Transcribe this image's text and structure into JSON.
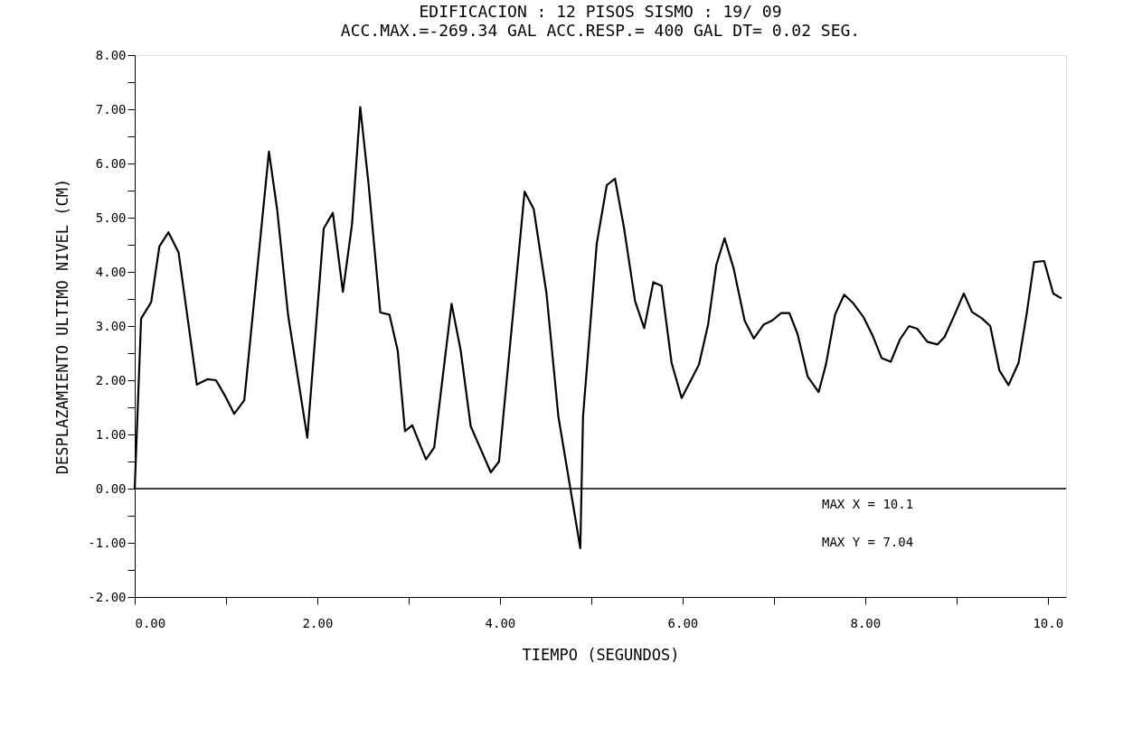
{
  "chart_data": {
    "type": "line",
    "title": "EDIFICACION : 12 PISOS    SISMO : 19/ 09",
    "subtitle": "ACC.MAX.=-269.34 GAL  ACC.RESP.= 400 GAL  DT= 0.02 SEG.",
    "xlabel": "TIEMPO    (SEGUNDOS)",
    "ylabel": "DESPLAZAMIENTO ULTIMO NIVEL    (CM)",
    "annotations": [
      "MAX X =  10.1",
      "MAX Y =  7.04"
    ],
    "x": [
      0,
      0.07,
      0.18,
      0.27,
      0.37,
      0.48,
      0.68,
      0.8,
      0.89,
      0.99,
      1.09,
      1.2,
      1.47,
      1.56,
      1.68,
      1.89,
      2.07,
      2.17,
      2.28,
      2.38,
      2.47,
      2.56,
      2.69,
      2.79,
      2.88,
      2.96,
      3.04,
      3.19,
      3.28,
      3.47,
      3.57,
      3.68,
      3.9,
      3.99,
      4.27,
      4.37,
      4.51,
      4.64,
      4.88,
      4.91,
      5.06,
      5.17,
      5.26,
      5.36,
      5.48,
      5.58,
      5.68,
      5.77,
      5.88,
      5.99,
      6.18,
      6.28,
      6.37,
      6.46,
      6.56,
      6.68,
      6.78,
      6.89,
      6.98,
      7.08,
      7.17,
      7.26,
      7.37,
      7.49,
      7.57,
      7.67,
      7.77,
      7.87,
      7.98,
      8.08,
      8.18,
      8.28,
      8.38,
      8.48,
      8.57,
      8.68,
      8.79,
      8.87,
      8.98,
      9.08,
      9.17,
      9.28,
      9.37,
      9.47,
      9.57,
      9.68,
      9.77,
      9.85,
      9.96,
      10.06,
      10.15
    ],
    "series": [
      {
        "color": "#000000",
        "values": [
          0,
          3.14,
          3.44,
          4.47,
          4.73,
          4.36,
          1.92,
          2.02,
          2.0,
          1.71,
          1.38,
          1.63,
          6.22,
          5.15,
          3.2,
          0.94,
          4.8,
          5.09,
          3.63,
          4.88,
          7.04,
          5.64,
          3.25,
          3.21,
          2.55,
          1.06,
          1.17,
          0.54,
          0.76,
          3.41,
          2.55,
          1.15,
          0.3,
          0.5,
          5.48,
          5.16,
          3.6,
          1.33,
          -1.1,
          1.33,
          4.52,
          5.6,
          5.72,
          4.8,
          3.46,
          2.96,
          3.81,
          3.74,
          2.32,
          1.67,
          2.29,
          3.03,
          4.13,
          4.62,
          4.06,
          3.1,
          2.77,
          3.03,
          3.1,
          3.24,
          3.24,
          2.85,
          2.07,
          1.78,
          2.29,
          3.21,
          3.58,
          3.42,
          3.17,
          2.83,
          2.41,
          2.34,
          2.75,
          3.0,
          2.95,
          2.71,
          2.66,
          2.8,
          3.21,
          3.6,
          3.26,
          3.14,
          3.0,
          2.18,
          1.91,
          2.32,
          3.24,
          4.18,
          4.2,
          3.6,
          3.51
        ]
      }
    ],
    "xlim": [
      0,
      10.2
    ],
    "xticks": [
      {
        "value": 0,
        "label": "0.00"
      },
      {
        "value": 1,
        "label": null
      },
      {
        "value": 2,
        "label": "2.00"
      },
      {
        "value": 3,
        "label": null
      },
      {
        "value": 4,
        "label": "4.00"
      },
      {
        "value": 5,
        "label": null
      },
      {
        "value": 6,
        "label": "6.00"
      },
      {
        "value": 7,
        "label": null
      },
      {
        "value": 8,
        "label": "8.00"
      },
      {
        "value": 9,
        "label": null
      },
      {
        "value": 10,
        "label": "10.0"
      }
    ],
    "ylim": [
      -2,
      8
    ],
    "yticks": [
      {
        "value": -2,
        "label": "-2.00"
      },
      {
        "value": -1.5,
        "label": null
      },
      {
        "value": -1,
        "label": "-1.00"
      },
      {
        "value": -0.5,
        "label": null
      },
      {
        "value": 0,
        "label": "0.00"
      },
      {
        "value": 0.5,
        "label": null
      },
      {
        "value": 1,
        "label": "1.00"
      },
      {
        "value": 1.5,
        "label": null
      },
      {
        "value": 2,
        "label": "2.00"
      },
      {
        "value": 2.5,
        "label": null
      },
      {
        "value": 3,
        "label": "3.00"
      },
      {
        "value": 3.5,
        "label": null
      },
      {
        "value": 4,
        "label": "4.00"
      },
      {
        "value": 4.5,
        "label": null
      },
      {
        "value": 5,
        "label": "5.00"
      },
      {
        "value": 5.5,
        "label": null
      },
      {
        "value": 6,
        "label": "6.00"
      },
      {
        "value": 6.5,
        "label": null
      },
      {
        "value": 7,
        "label": "7.00"
      },
      {
        "value": 7.5,
        "label": null
      },
      {
        "value": 8,
        "label": "8.00"
      }
    ],
    "ref_lines": [
      {
        "axis": "y",
        "value": 0,
        "color": "#000000"
      }
    ],
    "grid": false,
    "marker": "none",
    "line_style": "solid"
  }
}
